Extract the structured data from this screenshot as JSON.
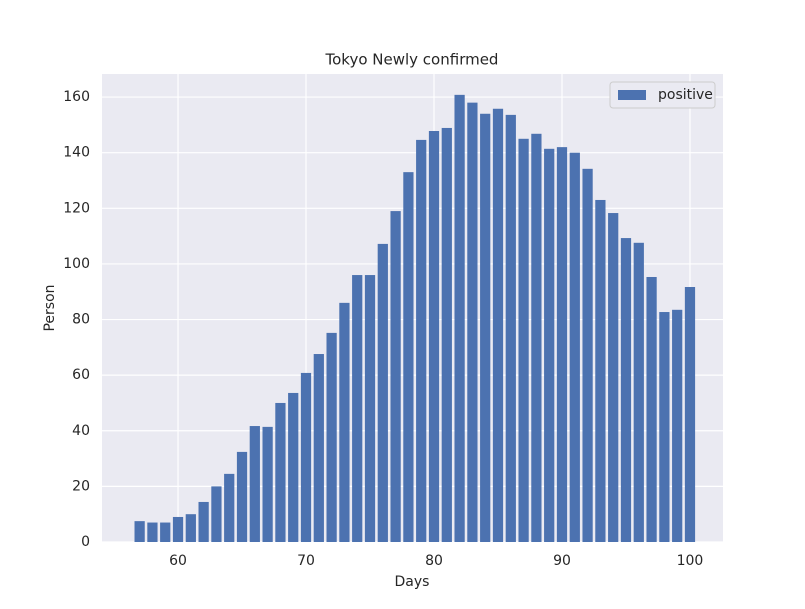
{
  "chart_data": {
    "type": "bar",
    "title": "Tokyo Newly confirmed",
    "xlabel": "Days",
    "ylabel": "Person",
    "x": [
      57,
      58,
      59,
      60,
      61,
      62,
      63,
      64,
      65,
      66,
      67,
      68,
      69,
      70,
      71,
      72,
      73,
      74,
      75,
      76,
      77,
      78,
      79,
      80,
      81,
      82,
      83,
      84,
      85,
      86,
      87,
      88,
      89,
      90,
      91,
      92,
      93,
      94,
      95,
      96,
      97,
      98,
      99,
      100
    ],
    "series": [
      {
        "name": "positive",
        "color": "#4c72b0",
        "values": [
          7.5,
          7,
          7,
          9,
          10,
          14.4,
          20,
          24.5,
          32.4,
          41.7,
          41.4,
          50,
          53.6,
          60.8,
          67.6,
          75.2,
          86,
          96,
          96,
          107.2,
          119,
          133,
          144.6,
          147.8,
          148.9,
          160.8,
          158,
          154,
          155.8,
          153.6,
          145,
          146.8,
          141.4,
          142,
          140,
          134.2,
          123,
          118.3,
          109.3,
          107.6,
          95.3,
          82.7,
          83.5,
          91.7
        ]
      }
    ],
    "xlim": [
      54.06,
      102.58
    ],
    "xticks": [
      60,
      70,
      80,
      90,
      100
    ],
    "ylim": [
      0,
      168.3
    ],
    "yticks": [
      0,
      20,
      40,
      60,
      80,
      100,
      120,
      140,
      160
    ],
    "grid": true,
    "legend": "upper right",
    "background": "#eaeaf2"
  }
}
